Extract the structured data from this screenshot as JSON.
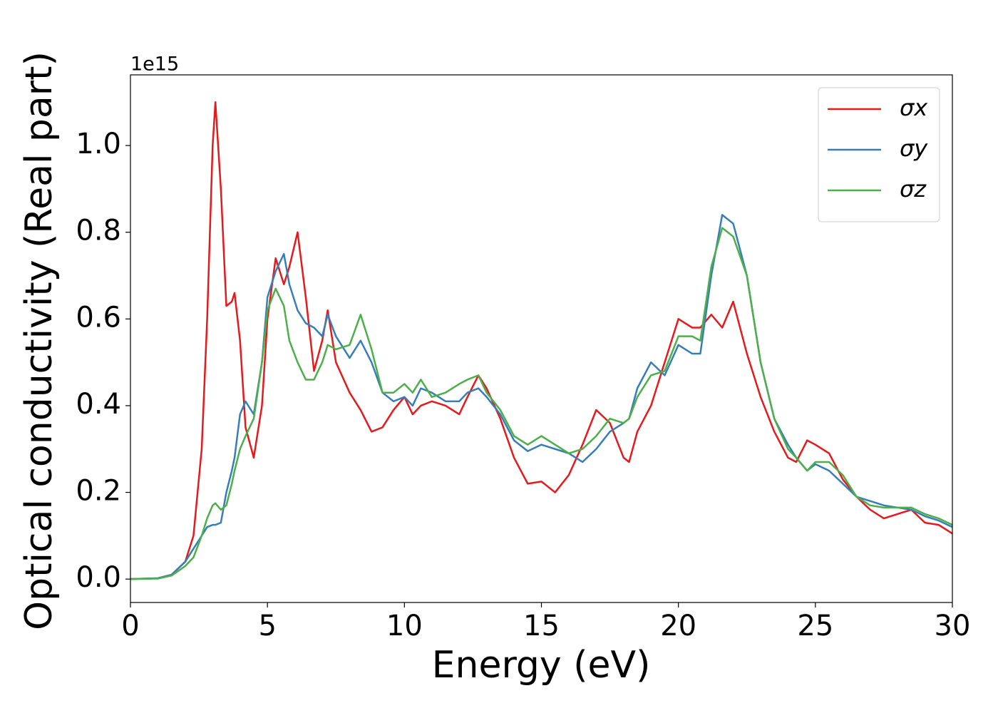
{
  "chart_data": {
    "type": "line",
    "x_label": "Energy (eV)",
    "y_label": "Optical conductivity (Real part)",
    "y_offset_label": "1e15",
    "xlim": [
      0,
      30
    ],
    "ylim": [
      -0.054,
      1.163
    ],
    "xticks": [
      0,
      5,
      10,
      15,
      20,
      25,
      30
    ],
    "yticks": [
      {
        "value": 0,
        "label": "0.0"
      },
      0.2,
      0.4,
      0.6,
      0.8,
      {
        "value": 1,
        "label": "1.0"
      }
    ],
    "legend": "upper right",
    "x": [
      0,
      1,
      1.5,
      2,
      2.3,
      2.6,
      2.8,
      3.0,
      3.1,
      3.3,
      3.5,
      3.7,
      3.8,
      4.0,
      4.2,
      4.5,
      4.8,
      5.0,
      5.3,
      5.6,
      5.8,
      6.1,
      6.4,
      6.7,
      7.0,
      7.2,
      7.5,
      8.0,
      8.4,
      8.8,
      9.2,
      9.6,
      10.0,
      10.3,
      10.6,
      11.0,
      11.5,
      12.0,
      12.3,
      12.7,
      13.0,
      13.5,
      14.0,
      14.5,
      15.0,
      15.5,
      16.0,
      16.5,
      17.0,
      17.5,
      18.0,
      18.2,
      18.5,
      19.0,
      19.5,
      20.0,
      20.5,
      20.8,
      21.2,
      21.6,
      22.0,
      22.5,
      23.0,
      23.5,
      24.0,
      24.3,
      24.7,
      25.0,
      25.5,
      26.0,
      26.5,
      27.0,
      27.5,
      28.0,
      28.5,
      29.0,
      29.5,
      30.0
    ],
    "series": [
      {
        "name": "σx",
        "color": "#e41a1c",
        "values": [
          0,
          0.002,
          0.01,
          0.04,
          0.1,
          0.3,
          0.6,
          1.0,
          1.1,
          0.9,
          0.63,
          0.64,
          0.66,
          0.55,
          0.35,
          0.28,
          0.4,
          0.6,
          0.74,
          0.68,
          0.72,
          0.8,
          0.65,
          0.48,
          0.55,
          0.62,
          0.5,
          0.43,
          0.39,
          0.34,
          0.35,
          0.39,
          0.42,
          0.38,
          0.4,
          0.41,
          0.4,
          0.38,
          0.42,
          0.47,
          0.44,
          0.37,
          0.28,
          0.22,
          0.225,
          0.2,
          0.24,
          0.31,
          0.39,
          0.36,
          0.28,
          0.27,
          0.34,
          0.4,
          0.5,
          0.6,
          0.58,
          0.58,
          0.61,
          0.58,
          0.64,
          0.52,
          0.42,
          0.34,
          0.28,
          0.27,
          0.32,
          0.31,
          0.29,
          0.23,
          0.19,
          0.16,
          0.14,
          0.15,
          0.16,
          0.13,
          0.125,
          0.105
        ]
      },
      {
        "name": "σy",
        "color": "#377eb8",
        "values": [
          0,
          0.002,
          0.01,
          0.04,
          0.07,
          0.1,
          0.12,
          0.125,
          0.125,
          0.13,
          0.2,
          0.25,
          0.28,
          0.38,
          0.41,
          0.38,
          0.5,
          0.65,
          0.71,
          0.75,
          0.68,
          0.62,
          0.59,
          0.58,
          0.56,
          0.61,
          0.56,
          0.51,
          0.55,
          0.5,
          0.43,
          0.41,
          0.42,
          0.4,
          0.44,
          0.43,
          0.41,
          0.41,
          0.43,
          0.44,
          0.42,
          0.38,
          0.32,
          0.295,
          0.31,
          0.3,
          0.29,
          0.27,
          0.3,
          0.34,
          0.36,
          0.37,
          0.44,
          0.5,
          0.47,
          0.54,
          0.52,
          0.52,
          0.7,
          0.84,
          0.82,
          0.7,
          0.5,
          0.37,
          0.31,
          0.28,
          0.25,
          0.265,
          0.25,
          0.22,
          0.19,
          0.18,
          0.17,
          0.165,
          0.16,
          0.145,
          0.135,
          0.12
        ]
      },
      {
        "name": "σz",
        "color": "#4daf4a",
        "values": [
          0,
          0.001,
          0.008,
          0.03,
          0.05,
          0.1,
          0.14,
          0.17,
          0.175,
          0.16,
          0.17,
          0.22,
          0.25,
          0.3,
          0.33,
          0.37,
          0.5,
          0.62,
          0.67,
          0.63,
          0.55,
          0.5,
          0.46,
          0.46,
          0.5,
          0.54,
          0.53,
          0.54,
          0.61,
          0.53,
          0.43,
          0.43,
          0.45,
          0.43,
          0.46,
          0.42,
          0.43,
          0.45,
          0.46,
          0.47,
          0.43,
          0.39,
          0.33,
          0.31,
          0.33,
          0.31,
          0.29,
          0.3,
          0.33,
          0.37,
          0.36,
          0.37,
          0.42,
          0.47,
          0.48,
          0.56,
          0.56,
          0.55,
          0.72,
          0.81,
          0.79,
          0.7,
          0.5,
          0.37,
          0.3,
          0.28,
          0.25,
          0.27,
          0.27,
          0.24,
          0.19,
          0.17,
          0.165,
          0.165,
          0.165,
          0.15,
          0.14,
          0.125
        ]
      }
    ]
  }
}
